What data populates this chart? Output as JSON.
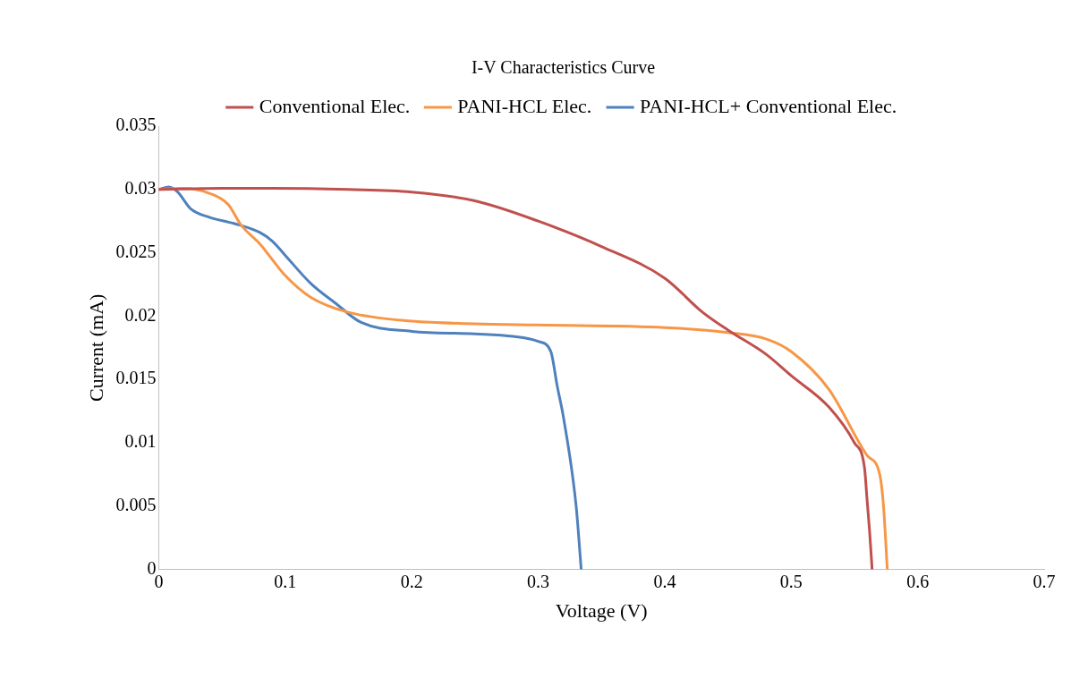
{
  "chart_data": {
    "type": "line",
    "title": "I-V Characteristics Curve",
    "xlabel": "Voltage (V)",
    "ylabel": "Current (mA)",
    "xlim": [
      0,
      0.7
    ],
    "xticks": [
      0,
      0.1,
      0.2,
      0.3,
      0.4,
      0.5,
      0.6,
      0.7
    ],
    "ylim": [
      0,
      0.035
    ],
    "yticks": [
      0,
      0.005,
      0.01,
      0.015,
      0.02,
      0.025,
      0.03,
      0.035
    ],
    "grid": false,
    "legend": "top",
    "marker": "none",
    "line_style": "solid",
    "series": [
      {
        "name": "Conventional Elec.",
        "color": "#c0504d",
        "x": [
          0,
          0.05,
          0.09,
          0.15,
          0.2,
          0.25,
          0.3,
          0.35,
          0.4,
          0.43,
          0.45,
          0.48,
          0.5,
          0.53,
          0.55,
          0.558,
          0.56,
          0.562,
          0.564
        ],
        "values": [
          0.03,
          0.0301,
          0.0301,
          0.03,
          0.0298,
          0.0291,
          0.0275,
          0.0255,
          0.023,
          0.0203,
          0.0189,
          0.017,
          0.0153,
          0.0128,
          0.01,
          0.008,
          0.0055,
          0.003,
          0
        ]
      },
      {
        "name": "PANI-HCL Elec.",
        "color": "#f79646",
        "x": [
          0,
          0.02,
          0.04,
          0.055,
          0.065,
          0.08,
          0.1,
          0.12,
          0.15,
          0.2,
          0.25,
          0.3,
          0.4,
          0.45,
          0.48,
          0.5,
          0.53,
          0.56,
          0.57,
          0.573,
          0.576
        ],
        "values": [
          0.03,
          0.0301,
          0.0297,
          0.0288,
          0.0272,
          0.0257,
          0.0232,
          0.0215,
          0.0203,
          0.0196,
          0.0194,
          0.0193,
          0.0191,
          0.0187,
          0.0182,
          0.0172,
          0.0142,
          0.009,
          0.0075,
          0.005,
          0
        ]
      },
      {
        "name": "PANI-HCL+ Conventional Elec.",
        "color": "#4f81bd",
        "x": [
          0,
          0.008,
          0.015,
          0.025,
          0.04,
          0.06,
          0.08,
          0.09,
          0.1,
          0.12,
          0.14,
          0.16,
          0.2,
          0.25,
          0.28,
          0.3,
          0.31,
          0.315,
          0.32,
          0.33,
          0.334
        ],
        "values": [
          0.03,
          0.0302,
          0.0298,
          0.0285,
          0.0278,
          0.0273,
          0.0266,
          0.0259,
          0.0248,
          0.0226,
          0.021,
          0.0195,
          0.0188,
          0.0186,
          0.0184,
          0.018,
          0.0172,
          0.0145,
          0.012,
          0.005,
          0
        ]
      }
    ]
  }
}
